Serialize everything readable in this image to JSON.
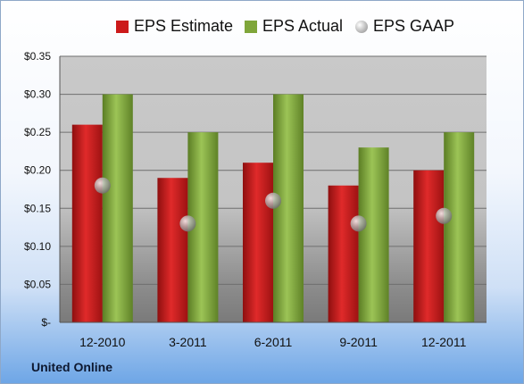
{
  "chart_data": {
    "type": "bar",
    "categories": [
      "12-2010",
      "3-2011",
      "6-2011",
      "9-2011",
      "12-2011"
    ],
    "series": [
      {
        "name": "EPS Estimate",
        "values": [
          0.26,
          0.19,
          0.21,
          0.18,
          0.2
        ],
        "color": "#cc1a1a",
        "kind": "bar"
      },
      {
        "name": "EPS Actual",
        "values": [
          0.3,
          0.25,
          0.3,
          0.23,
          0.25
        ],
        "color": "#7fa63a",
        "kind": "bar"
      },
      {
        "name": "EPS GAAP",
        "values": [
          0.18,
          0.13,
          0.16,
          0.13,
          0.14
        ],
        "color": "#9a9a9a",
        "kind": "marker"
      }
    ],
    "yticks": [
      "$-",
      "$0.05",
      "$0.10",
      "$0.15",
      "$0.20",
      "$0.25",
      "$0.30",
      "$0.35"
    ],
    "ylim": [
      0,
      0.35
    ],
    "grid": true,
    "legend": "top"
  },
  "footer": {
    "company": "United Online"
  }
}
